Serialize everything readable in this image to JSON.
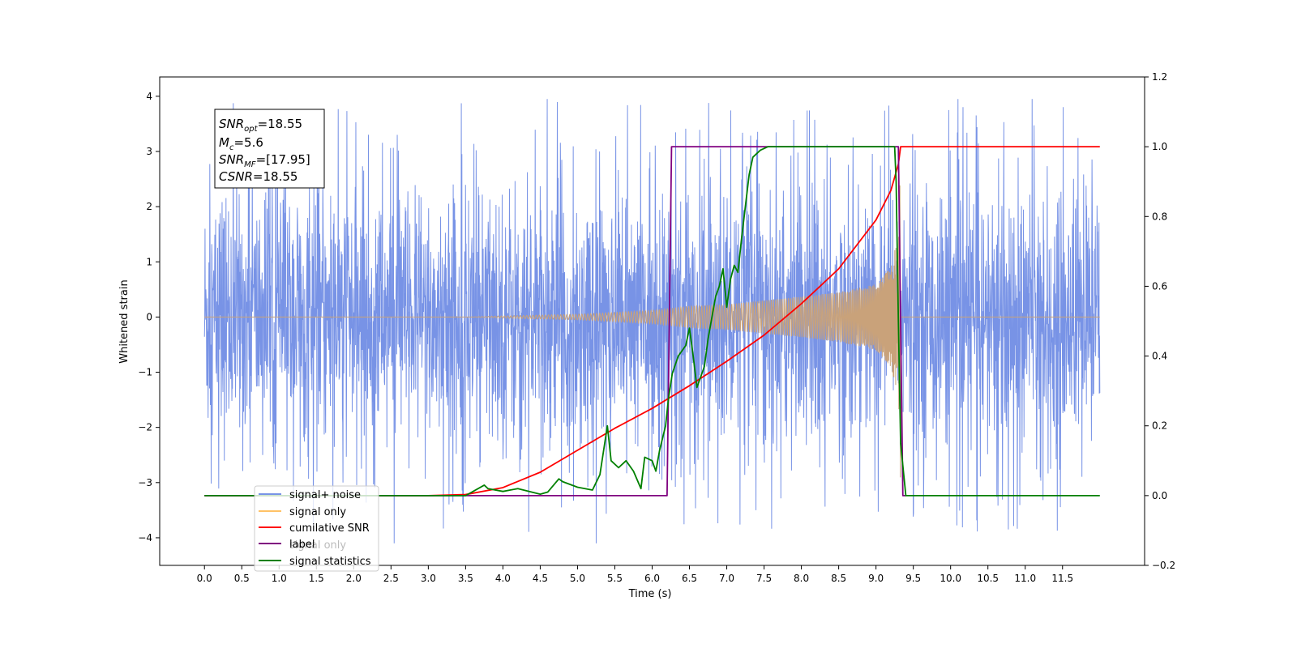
{
  "chart_data": {
    "type": "line",
    "xlabel": "Time (s)",
    "ylabel": "Whitened strain",
    "xlim": [
      -0.6,
      12.6
    ],
    "ylim": [
      -4.5,
      4.35
    ],
    "ylim_right": [
      -0.2,
      1.2
    ],
    "x_ticks": [
      0.0,
      0.5,
      1.0,
      1.5,
      2.0,
      2.5,
      3.0,
      3.5,
      4.0,
      4.5,
      5.0,
      5.5,
      6.0,
      6.5,
      7.0,
      7.5,
      8.0,
      8.5,
      9.0,
      9.5,
      10.0,
      10.5,
      11.0,
      11.5
    ],
    "x_tick_labels": [
      "0.0",
      "0.5",
      "1.0",
      "1.5",
      "2.0",
      "2.5",
      "3.0",
      "3.5",
      "4.0",
      "4.5",
      "5.0",
      "5.5",
      "6.0",
      "6.5",
      "7.0",
      "7.5",
      "8.0",
      "8.5",
      "9.0",
      "9.5",
      "10.0",
      "10.5",
      "11.0",
      "11.5"
    ],
    "y_ticks": [
      -4,
      -3,
      -2,
      -1,
      0,
      1,
      2,
      3,
      4
    ],
    "y_tick_labels": [
      "−4",
      "−3",
      "−2",
      "−1",
      "0",
      "1",
      "2",
      "3",
      "4"
    ],
    "y_right_ticks": [
      -0.2,
      0.0,
      0.2,
      0.4,
      0.6,
      0.8,
      1.0,
      1.2
    ],
    "y_right_tick_labels": [
      "−0.2",
      "0.0",
      "0.2",
      "0.4",
      "0.6",
      "0.8",
      "1.0",
      "1.2"
    ],
    "grid": false,
    "legend_position": "lower-left",
    "legend": [
      {
        "label": "signal+ noise",
        "color": "#7893e6"
      },
      {
        "label": "signal only",
        "color": "#ffc266"
      },
      {
        "label": "cumilative SNR",
        "color": "#ff0000"
      },
      {
        "label": "label",
        "color": "#800080"
      },
      {
        "label": "signal statistics",
        "color": "#008000"
      }
    ],
    "legend_hidden_text": "signal only",
    "annotation": {
      "lines": [
        {
          "sym": "SNR",
          "sub": "opt",
          "value": "=18.55"
        },
        {
          "sym": "M",
          "sub": "c",
          "value": "=5.6"
        },
        {
          "sym": "SNR",
          "sub": "MF",
          "value": "=[17.95]"
        },
        {
          "sym": "CSNR",
          "sub": "",
          "value": "=18.55"
        }
      ]
    },
    "series": [
      {
        "name": "signal+ noise",
        "axis": "left",
        "color": "#7893e6",
        "kind": "noise",
        "x_range": [
          0.0,
          12.0
        ],
        "envelope_typical": 2.0,
        "peak_max": 3.95,
        "trough_min": -4.1
      },
      {
        "name": "signal only",
        "axis": "left",
        "color": "#c9a27a",
        "kind": "chirp",
        "x_range": [
          0.0,
          12.0
        ],
        "merger_time": 9.33,
        "envelope": [
          [
            0.0,
            0.0
          ],
          [
            3.5,
            0.0
          ],
          [
            4.0,
            0.02
          ],
          [
            5.0,
            0.05
          ],
          [
            6.0,
            0.12
          ],
          [
            6.5,
            0.2
          ],
          [
            7.0,
            0.23
          ],
          [
            7.5,
            0.3
          ],
          [
            8.0,
            0.37
          ],
          [
            8.5,
            0.45
          ],
          [
            9.0,
            0.6
          ],
          [
            9.2,
            0.9
          ],
          [
            9.3,
            1.5
          ],
          [
            9.33,
            3.1
          ]
        ]
      },
      {
        "name": "cumilative SNR",
        "axis": "right",
        "color": "#ff0000",
        "x": [
          0.0,
          2.0,
          3.0,
          3.5,
          4.0,
          4.5,
          5.0,
          5.5,
          6.0,
          6.5,
          7.0,
          7.5,
          8.0,
          8.5,
          9.0,
          9.2,
          9.3,
          9.33,
          9.4,
          12.0
        ],
        "values": [
          0.0,
          0.0,
          0.0,
          0.003,
          0.023,
          0.067,
          0.13,
          0.193,
          0.25,
          0.315,
          0.385,
          0.46,
          0.55,
          0.65,
          0.79,
          0.875,
          0.95,
          1.0,
          1.0,
          1.0
        ]
      },
      {
        "name": "label",
        "axis": "right",
        "color": "#800080",
        "x": [
          0.0,
          6.2,
          6.26,
          9.3,
          9.36,
          9.4
        ],
        "values": [
          0.0,
          0.0,
          1.0,
          1.0,
          0.0,
          0.0
        ]
      },
      {
        "name": "signal statistics",
        "axis": "right",
        "color": "#008000",
        "x": [
          0.0,
          2.0,
          2.5,
          3.0,
          3.5,
          3.75,
          3.8,
          4.0,
          4.2,
          4.5,
          4.6,
          4.75,
          4.8,
          5.0,
          5.2,
          5.3,
          5.35,
          5.4,
          5.45,
          5.55,
          5.65,
          5.75,
          5.85,
          5.9,
          6.0,
          6.05,
          6.1,
          6.18,
          6.22,
          6.27,
          6.35,
          6.45,
          6.5,
          6.55,
          6.6,
          6.7,
          6.75,
          6.85,
          6.9,
          6.95,
          7.0,
          7.05,
          7.1,
          7.15,
          7.2,
          7.3,
          7.35,
          7.45,
          7.55,
          7.7,
          8.0,
          9.0,
          9.25,
          9.27,
          9.3,
          9.33,
          9.4,
          12.0
        ],
        "values": [
          0.0,
          0.0,
          0.0,
          0.0,
          0.0,
          0.03,
          0.02,
          0.012,
          0.02,
          0.004,
          0.01,
          0.048,
          0.04,
          0.024,
          0.016,
          0.06,
          0.13,
          0.2,
          0.1,
          0.08,
          0.1,
          0.07,
          0.02,
          0.11,
          0.1,
          0.07,
          0.13,
          0.2,
          0.28,
          0.35,
          0.4,
          0.43,
          0.48,
          0.4,
          0.31,
          0.37,
          0.45,
          0.57,
          0.6,
          0.65,
          0.54,
          0.62,
          0.66,
          0.64,
          0.74,
          0.92,
          0.97,
          0.99,
          1.0,
          1.0,
          1.0,
          1.0,
          1.0,
          0.9,
          0.5,
          0.15,
          0.0,
          0.0
        ]
      }
    ]
  }
}
